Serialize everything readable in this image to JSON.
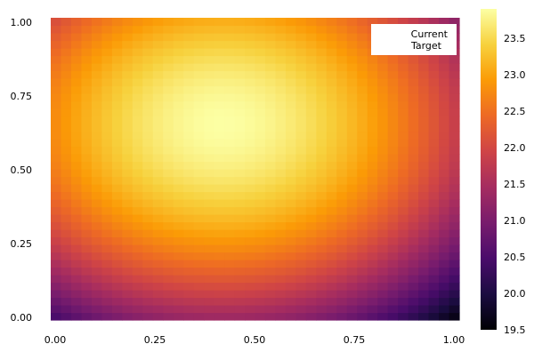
{
  "chart_data": {
    "type": "heatmap",
    "title": "",
    "xlabel": "",
    "ylabel": "",
    "xlim": [
      0.0,
      1.0
    ],
    "ylim": [
      0.0,
      1.0
    ],
    "x_ticks": [
      "0.00",
      "0.25",
      "0.50",
      "0.75",
      "1.00"
    ],
    "y_ticks": [
      "0.00",
      "0.25",
      "0.50",
      "0.75",
      "1.00"
    ],
    "grid_cells": 40,
    "field": {
      "peak_value": 23.9,
      "peak_x": 0.42,
      "peak_y": 0.65,
      "min_value": 19.5,
      "min_at": [
        1.0,
        0.0
      ]
    },
    "colorbar": {
      "min": 19.5,
      "max": 23.9,
      "ticks": [
        "19.5",
        "20.0",
        "20.5",
        "21.0",
        "21.5",
        "22.0",
        "22.5",
        "23.0",
        "23.5"
      ],
      "colormap": "inferno",
      "colors": [
        "#000004",
        "#1b0c41",
        "#4a0c6b",
        "#781c6d",
        "#a52c60",
        "#cf4446",
        "#ed6925",
        "#fb9b06",
        "#f7d13d",
        "#fcffa4"
      ]
    },
    "legend": {
      "placement": "top-right",
      "entries": [
        "Current",
        "Target"
      ]
    }
  }
}
